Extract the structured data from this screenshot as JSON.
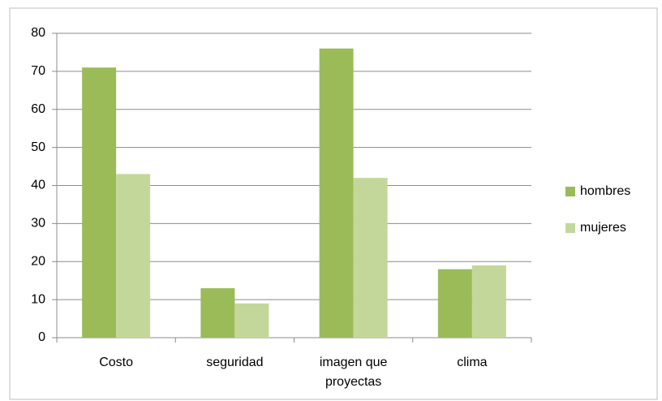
{
  "chart_data": {
    "type": "bar",
    "categories": [
      "Costo",
      "seguridad",
      "imagen que proyectas",
      "clima"
    ],
    "series": [
      {
        "name": "hombres",
        "color": "#9bbb59",
        "values": [
          71,
          13,
          76,
          18
        ]
      },
      {
        "name": "mujeres",
        "color": "#c4d79b",
        "values": [
          43,
          9,
          42,
          19
        ]
      }
    ],
    "ylim": [
      0,
      80
    ],
    "yticks": [
      0,
      10,
      20,
      30,
      40,
      50,
      60,
      70,
      80
    ],
    "grid": true,
    "legend": "right"
  }
}
